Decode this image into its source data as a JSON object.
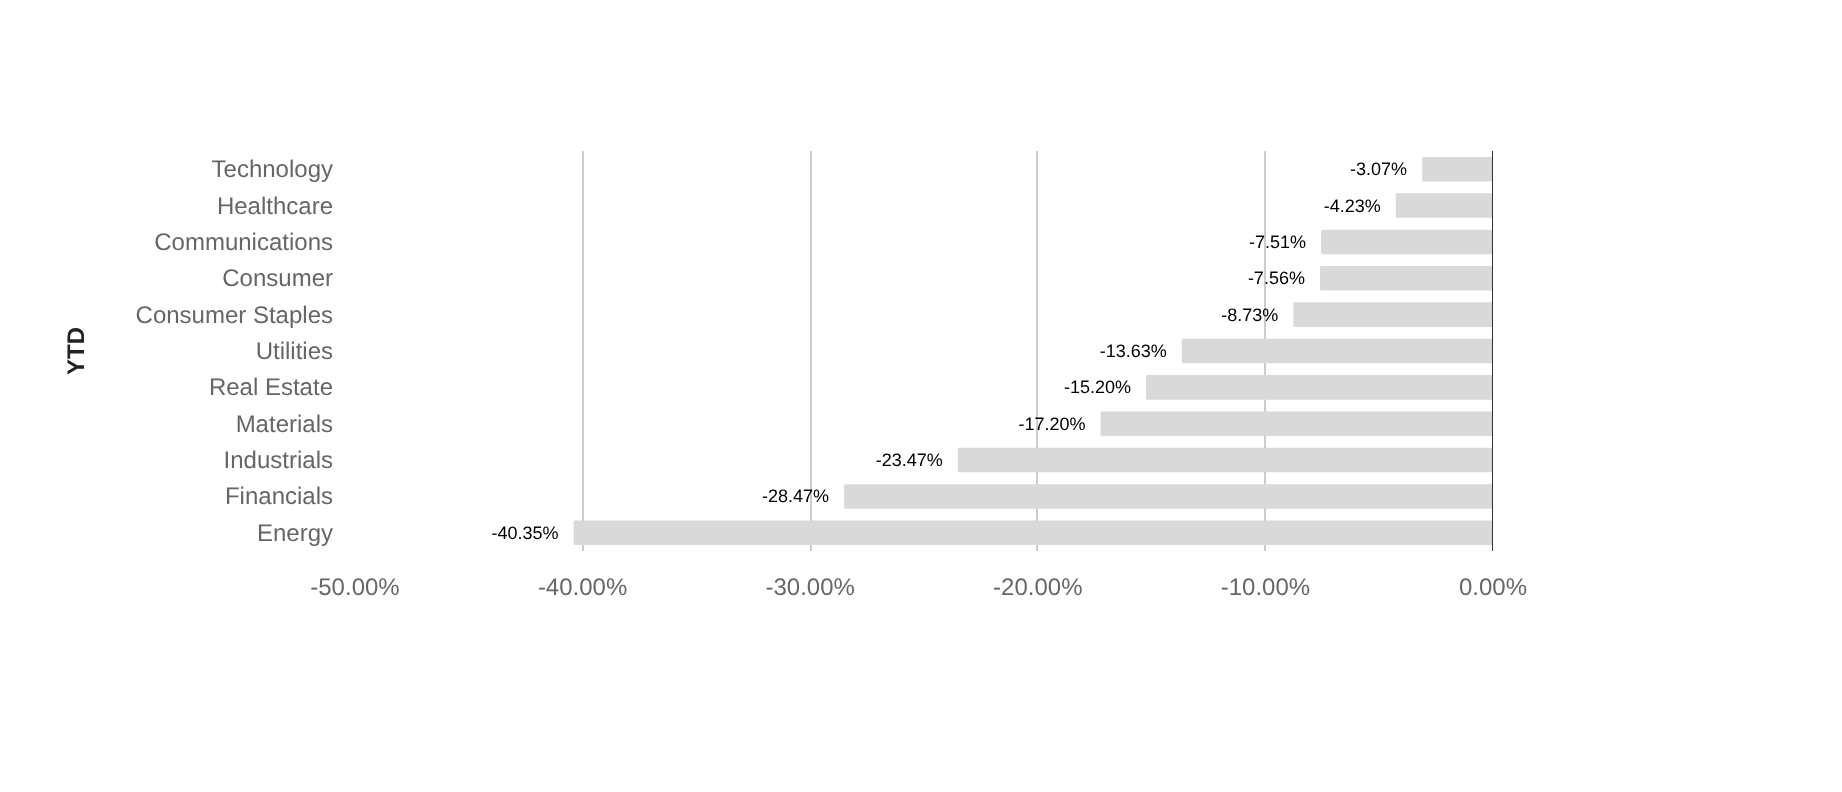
{
  "chart_data": {
    "type": "bar",
    "orientation": "horizontal",
    "ylabel": "YTD",
    "categories": [
      "Technology",
      "Healthcare",
      "Communications",
      "Consumer",
      "Consumer Staples",
      "Utilities",
      "Real Estate",
      "Materials",
      "Industrials",
      "Financials",
      "Energy"
    ],
    "values": [
      -3.07,
      -4.23,
      -7.51,
      -7.56,
      -8.73,
      -13.63,
      -15.2,
      -17.2,
      -23.47,
      -28.47,
      -40.35
    ],
    "value_labels": [
      "-3.07%",
      "-4.23%",
      "-7.51%",
      "-7.56%",
      "-8.73%",
      "-13.63%",
      "-15.20%",
      "-17.20%",
      "-23.47%",
      "-28.47%",
      "-40.35%"
    ],
    "color": "#d9d9d9",
    "xlim": [
      -50,
      0
    ],
    "xticks": [
      {
        "value": -50,
        "label": "-50.00%"
      },
      {
        "value": -40,
        "label": "-40.00%"
      },
      {
        "value": -30,
        "label": "-30.00%"
      },
      {
        "value": -20,
        "label": "-20.00%"
      },
      {
        "value": -10,
        "label": "-10.00%"
      },
      {
        "value": 0,
        "label": "0.00%"
      }
    ],
    "grid": "x"
  }
}
